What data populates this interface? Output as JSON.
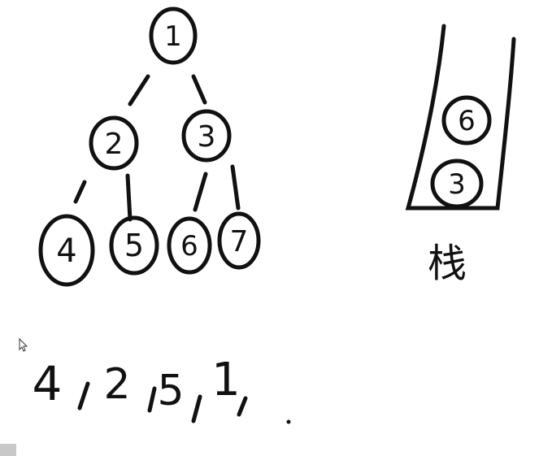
{
  "tree": {
    "nodes": [
      {
        "id": "n1",
        "label": "1"
      },
      {
        "id": "n2",
        "label": "2"
      },
      {
        "id": "n3",
        "label": "3"
      },
      {
        "id": "n4",
        "label": "4"
      },
      {
        "id": "n5",
        "label": "5"
      },
      {
        "id": "n6",
        "label": "6"
      },
      {
        "id": "n7",
        "label": "7"
      }
    ],
    "edges": [
      [
        "n1",
        "n2"
      ],
      [
        "n1",
        "n3"
      ],
      [
        "n2",
        "n4"
      ],
      [
        "n2",
        "n5"
      ],
      [
        "n3",
        "n6"
      ],
      [
        "n3",
        "n7"
      ]
    ]
  },
  "stack": {
    "label": "栈",
    "items": [
      "6",
      "3"
    ]
  },
  "sequence": {
    "items": [
      "4",
      "2",
      "5",
      "1"
    ]
  },
  "colors": {
    "ink": "#111111",
    "background": "#ffffff"
  }
}
